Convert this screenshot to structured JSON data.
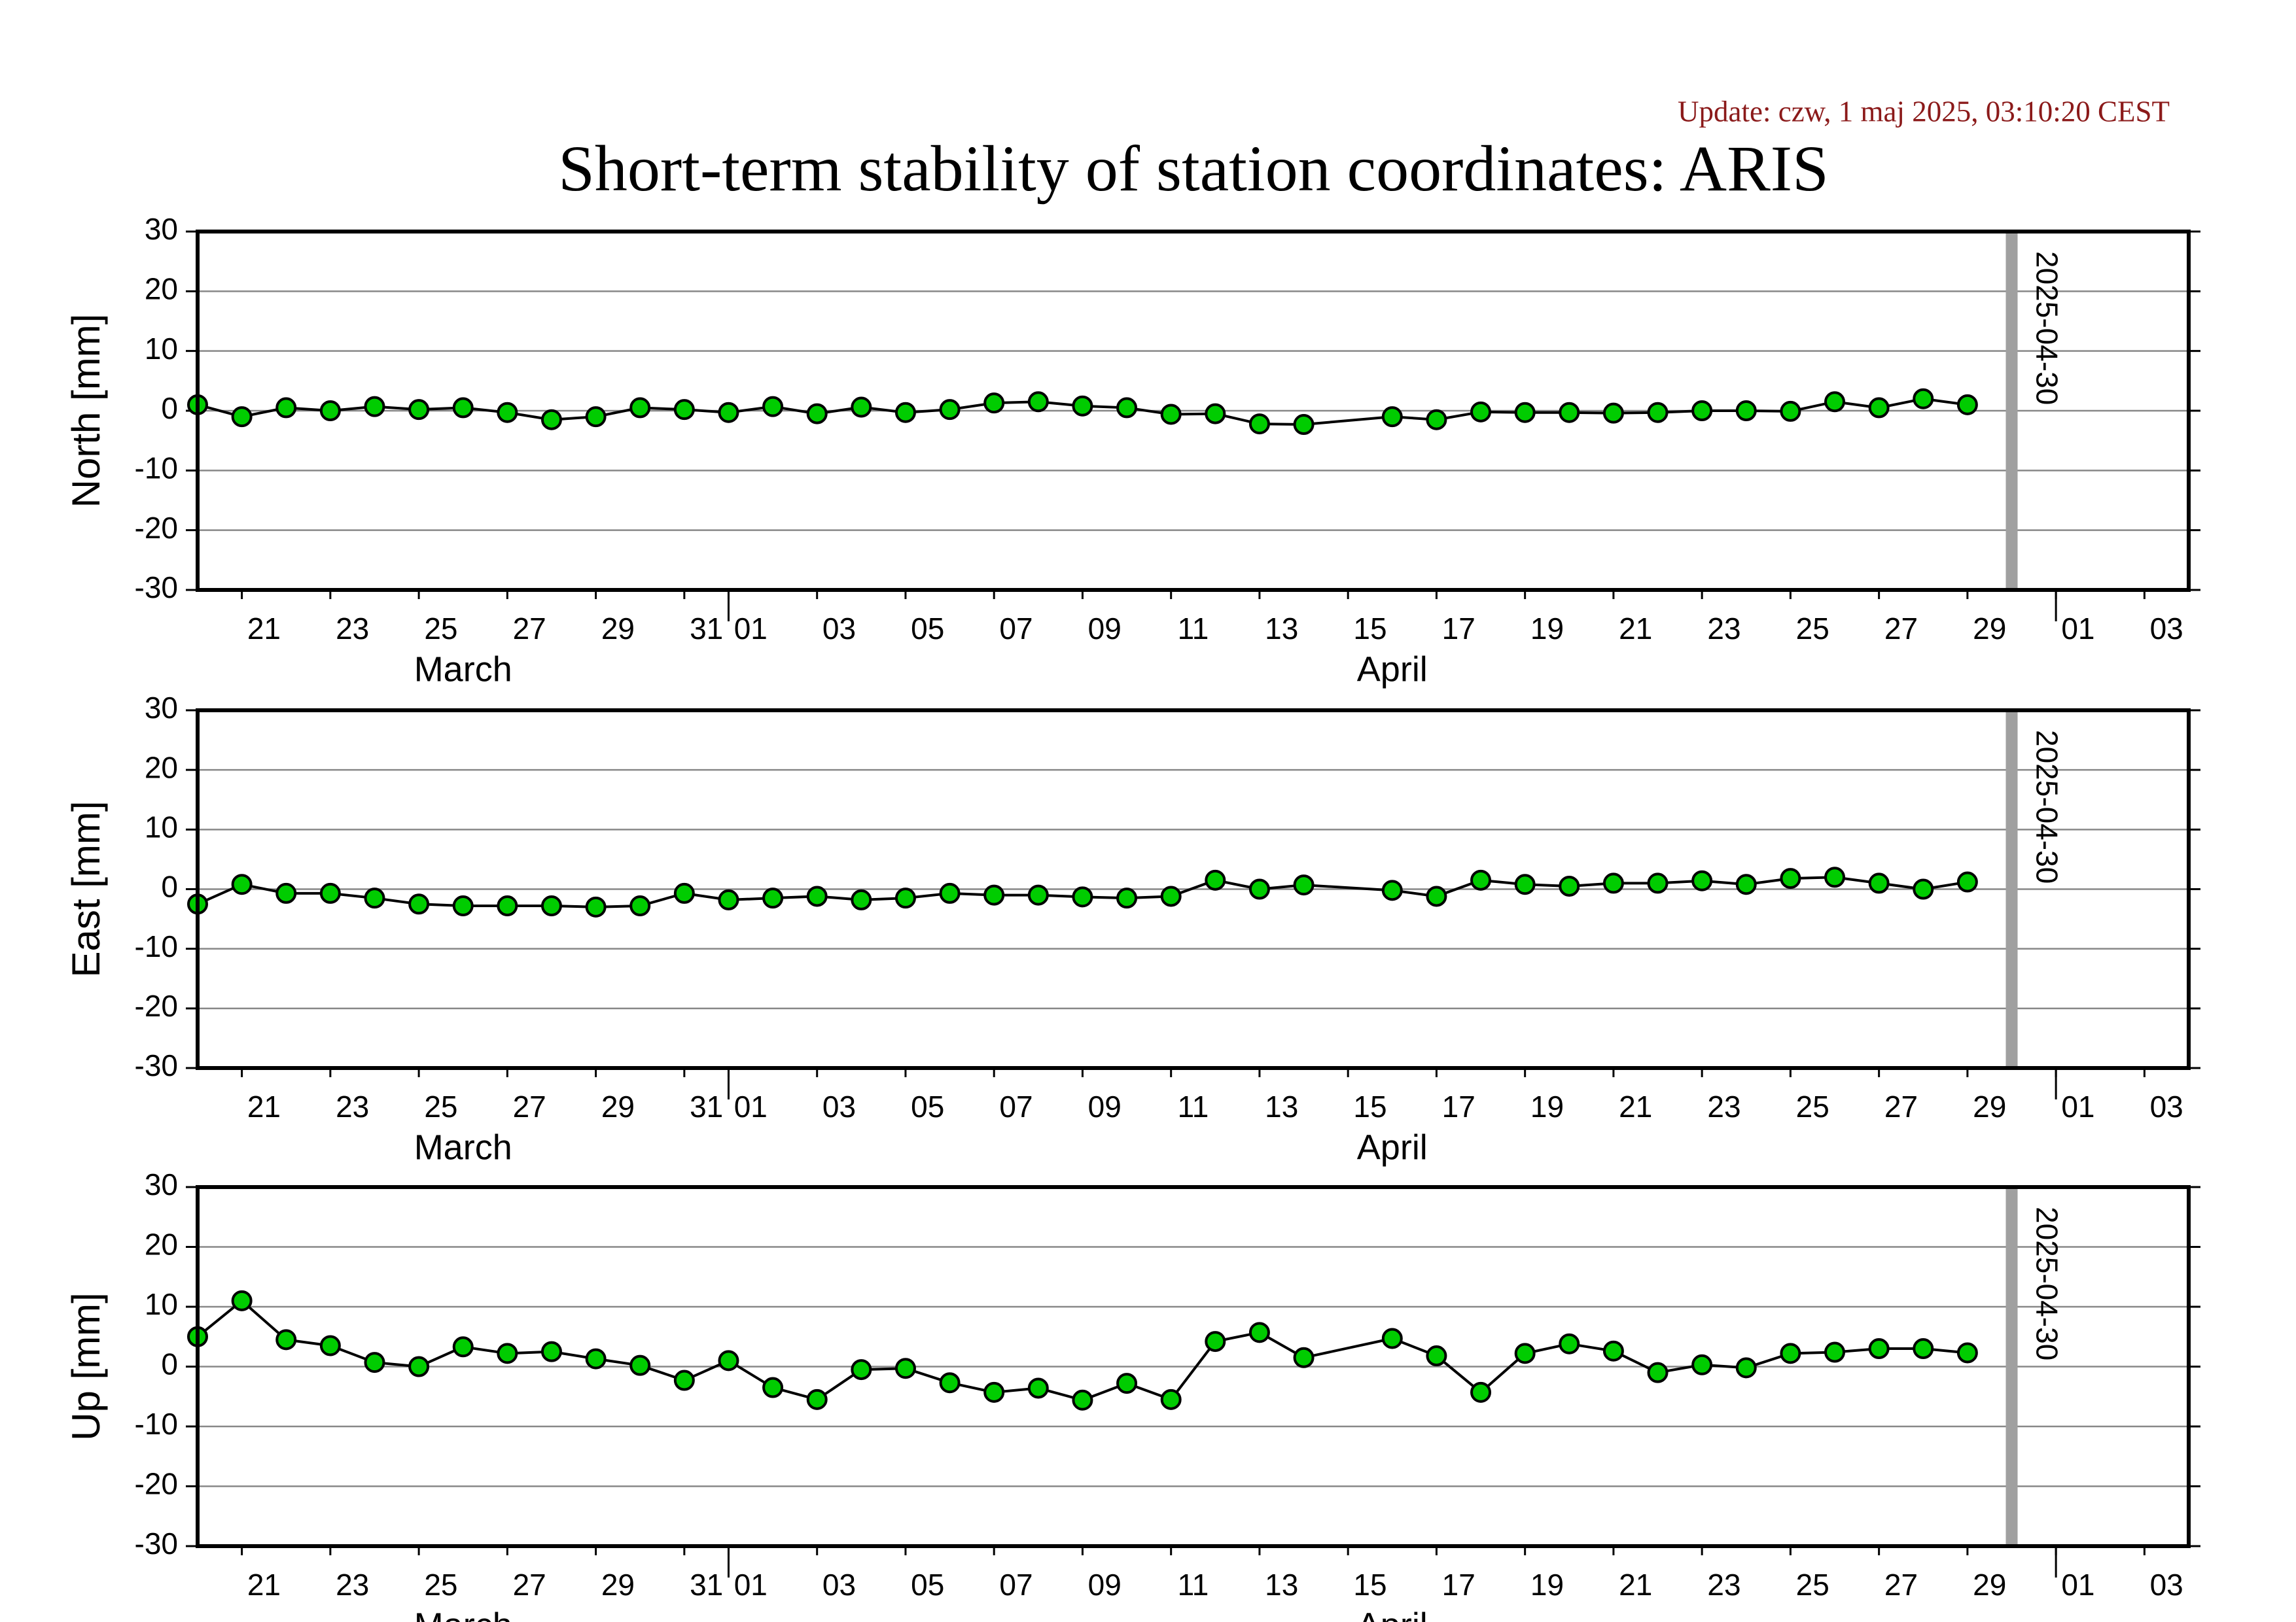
{
  "title": "Short-term stability of station coordinates: ARIS",
  "update": "Update: czw, 1 maj 2025, 03:10:20 CEST",
  "chart_data": [
    {
      "type": "line",
      "ylabel": "North [mm]",
      "color": "#00cc00",
      "line_color": "#000000",
      "grid": true,
      "x": [
        "03-20",
        "03-21",
        "03-22",
        "03-23",
        "03-24",
        "03-25",
        "03-26",
        "03-27",
        "03-28",
        "03-29",
        "03-30",
        "03-31",
        "04-01",
        "04-02",
        "04-03",
        "04-04",
        "04-05",
        "04-06",
        "04-07",
        "04-08",
        "04-09",
        "04-10",
        "04-11",
        "04-12",
        "04-13",
        "04-14",
        "04-16",
        "04-17",
        "04-18",
        "04-19",
        "04-20",
        "04-21",
        "04-22",
        "04-23",
        "04-24",
        "04-25",
        "04-26",
        "04-27",
        "04-28",
        "04-29"
      ],
      "values": [
        1,
        -1,
        0.5,
        0,
        0.7,
        0.2,
        0.5,
        -0.3,
        -1.5,
        -1,
        0.5,
        0.2,
        -0.3,
        0.7,
        -0.5,
        0.6,
        -0.3,
        0.2,
        1.3,
        1.5,
        0.8,
        0.5,
        -0.6,
        -0.5,
        -2.2,
        -2.3,
        -1,
        -1.5,
        -0.2,
        -0.3,
        -0.3,
        -0.4,
        -0.3,
        0,
        0,
        -0.1,
        1.5,
        0.5,
        2,
        1
      ],
      "xlim": [
        "03-20",
        "05-04"
      ],
      "ylim": [
        -30,
        30
      ],
      "yticks": [
        -30,
        -20,
        -10,
        0,
        10,
        20,
        30
      ],
      "xticks": [
        {
          "value": "03-21",
          "label": "21"
        },
        {
          "value": "03-23",
          "label": "23"
        },
        {
          "value": "03-25",
          "label": "25"
        },
        {
          "value": "03-27",
          "label": "27"
        },
        {
          "value": "03-29",
          "label": "29"
        },
        {
          "value": "03-31",
          "label": "31"
        },
        {
          "value": "04-01",
          "label": "01"
        },
        {
          "value": "04-03",
          "label": "03"
        },
        {
          "value": "04-05",
          "label": "05"
        },
        {
          "value": "04-07",
          "label": "07"
        },
        {
          "value": "04-09",
          "label": "09"
        },
        {
          "value": "04-11",
          "label": "11"
        },
        {
          "value": "04-13",
          "label": "13"
        },
        {
          "value": "04-15",
          "label": "15"
        },
        {
          "value": "04-17",
          "label": "17"
        },
        {
          "value": "04-19",
          "label": "19"
        },
        {
          "value": "04-21",
          "label": "21"
        },
        {
          "value": "04-23",
          "label": "23"
        },
        {
          "value": "04-25",
          "label": "25"
        },
        {
          "value": "04-27",
          "label": "27"
        },
        {
          "value": "04-29",
          "label": "29"
        },
        {
          "value": "05-01",
          "label": "01"
        },
        {
          "value": "05-03",
          "label": "03"
        }
      ],
      "months": [
        "March",
        "April"
      ],
      "marker_date": "2025-04-30",
      "marker_color": "#a0a0a0"
    },
    {
      "type": "line",
      "ylabel": "East [mm]",
      "color": "#00cc00",
      "line_color": "#000000",
      "grid": true,
      "x": [
        "03-20",
        "03-21",
        "03-22",
        "03-23",
        "03-24",
        "03-25",
        "03-26",
        "03-27",
        "03-28",
        "03-29",
        "03-30",
        "03-31",
        "04-01",
        "04-02",
        "04-03",
        "04-04",
        "04-05",
        "04-06",
        "04-07",
        "04-08",
        "04-09",
        "04-10",
        "04-11",
        "04-12",
        "04-13",
        "04-14",
        "04-16",
        "04-17",
        "04-18",
        "04-19",
        "04-20",
        "04-21",
        "04-22",
        "04-23",
        "04-24",
        "04-25",
        "04-26",
        "04-27",
        "04-28",
        "04-29"
      ],
      "values": [
        -2.5,
        0.8,
        -0.7,
        -0.7,
        -1.5,
        -2.5,
        -2.8,
        -2.8,
        -2.8,
        -3,
        -2.8,
        -0.7,
        -1.8,
        -1.5,
        -1.2,
        -1.8,
        -1.5,
        -0.7,
        -1,
        -1,
        -1.3,
        -1.5,
        -1.2,
        1.5,
        0,
        0.7,
        -0.2,
        -1.2,
        1.5,
        0.8,
        0.5,
        1,
        1,
        1.4,
        0.8,
        1.8,
        2,
        1,
        0,
        1.2
      ],
      "xlim": [
        "03-20",
        "05-04"
      ],
      "ylim": [
        -30,
        30
      ],
      "yticks": [
        -30,
        -20,
        -10,
        0,
        10,
        20,
        30
      ],
      "xticks": [
        {
          "value": "03-21",
          "label": "21"
        },
        {
          "value": "03-23",
          "label": "23"
        },
        {
          "value": "03-25",
          "label": "25"
        },
        {
          "value": "03-27",
          "label": "27"
        },
        {
          "value": "03-29",
          "label": "29"
        },
        {
          "value": "03-31",
          "label": "31"
        },
        {
          "value": "04-01",
          "label": "01"
        },
        {
          "value": "04-03",
          "label": "03"
        },
        {
          "value": "04-05",
          "label": "05"
        },
        {
          "value": "04-07",
          "label": "07"
        },
        {
          "value": "04-09",
          "label": "09"
        },
        {
          "value": "04-11",
          "label": "11"
        },
        {
          "value": "04-13",
          "label": "13"
        },
        {
          "value": "04-15",
          "label": "15"
        },
        {
          "value": "04-17",
          "label": "17"
        },
        {
          "value": "04-19",
          "label": "19"
        },
        {
          "value": "04-21",
          "label": "21"
        },
        {
          "value": "04-23",
          "label": "23"
        },
        {
          "value": "04-25",
          "label": "25"
        },
        {
          "value": "04-27",
          "label": "27"
        },
        {
          "value": "04-29",
          "label": "29"
        },
        {
          "value": "05-01",
          "label": "01"
        },
        {
          "value": "05-03",
          "label": "03"
        }
      ],
      "months": [
        "March",
        "April"
      ],
      "marker_date": "2025-04-30",
      "marker_color": "#a0a0a0"
    },
    {
      "type": "line",
      "ylabel": "Up [mm]",
      "color": "#00cc00",
      "line_color": "#000000",
      "grid": true,
      "x": [
        "03-20",
        "03-21",
        "03-22",
        "03-23",
        "03-24",
        "03-25",
        "03-26",
        "03-27",
        "03-28",
        "03-29",
        "03-30",
        "03-31",
        "04-01",
        "04-02",
        "04-03",
        "04-04",
        "04-05",
        "04-06",
        "04-07",
        "04-08",
        "04-09",
        "04-10",
        "04-11",
        "04-12",
        "04-13",
        "04-14",
        "04-16",
        "04-17",
        "04-18",
        "04-19",
        "04-20",
        "04-21",
        "04-22",
        "04-23",
        "04-24",
        "04-25",
        "04-26",
        "04-27",
        "04-28",
        "04-29"
      ],
      "values": [
        5,
        11,
        4.5,
        3.5,
        0.7,
        0,
        3.3,
        2.2,
        2.5,
        1.3,
        0.2,
        -2.3,
        1,
        -3.5,
        -5.5,
        -0.5,
        -0.3,
        -2.7,
        -4.3,
        -3.6,
        -5.6,
        -2.8,
        -5.5,
        4.2,
        5.7,
        1.5,
        4.7,
        1.8,
        -4.3,
        2.2,
        3.8,
        2.6,
        -1,
        0.3,
        -0.2,
        2.2,
        2.4,
        3,
        3,
        2.3
      ],
      "xlim": [
        "03-20",
        "05-04"
      ],
      "ylim": [
        -30,
        30
      ],
      "yticks": [
        -30,
        -20,
        -10,
        0,
        10,
        20,
        30
      ],
      "xticks": [
        {
          "value": "03-21",
          "label": "21"
        },
        {
          "value": "03-23",
          "label": "23"
        },
        {
          "value": "03-25",
          "label": "25"
        },
        {
          "value": "03-27",
          "label": "27"
        },
        {
          "value": "03-29",
          "label": "29"
        },
        {
          "value": "03-31",
          "label": "31"
        },
        {
          "value": "04-01",
          "label": "01"
        },
        {
          "value": "04-03",
          "label": "03"
        },
        {
          "value": "04-05",
          "label": "05"
        },
        {
          "value": "04-07",
          "label": "07"
        },
        {
          "value": "04-09",
          "label": "09"
        },
        {
          "value": "04-11",
          "label": "11"
        },
        {
          "value": "04-13",
          "label": "13"
        },
        {
          "value": "04-15",
          "label": "15"
        },
        {
          "value": "04-17",
          "label": "17"
        },
        {
          "value": "04-19",
          "label": "19"
        },
        {
          "value": "04-21",
          "label": "21"
        },
        {
          "value": "04-23",
          "label": "23"
        },
        {
          "value": "04-25",
          "label": "25"
        },
        {
          "value": "04-27",
          "label": "27"
        },
        {
          "value": "04-29",
          "label": "29"
        },
        {
          "value": "05-01",
          "label": "01"
        },
        {
          "value": "05-03",
          "label": "03"
        }
      ],
      "months": [
        "March",
        "April"
      ],
      "marker_date": "2025-04-30",
      "marker_color": "#a0a0a0"
    }
  ]
}
